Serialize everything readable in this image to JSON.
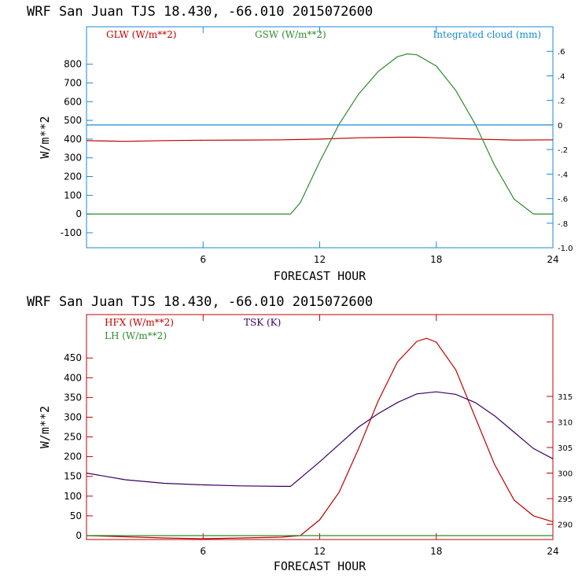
{
  "chart_data": [
    {
      "type": "line",
      "title": "WRF  San Juan TJS  18.430, -66.010  2015072600",
      "xlabel": "FORECAST HOUR",
      "ylabel": "W/m**2",
      "xlim": [
        0,
        24
      ],
      "ylim": [
        -180,
        1000
      ],
      "xticks": [
        "6",
        "12",
        "18",
        "24"
      ],
      "yticks": [
        "-100",
        "0",
        "100",
        "200",
        "300",
        "400",
        "500",
        "600",
        "700",
        "800"
      ],
      "y2lim": [
        -1.0,
        0.8
      ],
      "y2ticks": [
        ".6",
        ".4",
        ".2",
        "0",
        "-.2",
        "-.4",
        "-.6",
        "-.8",
        "-1.0"
      ],
      "axes_color": "#1a8ad4",
      "series": [
        {
          "name": "GLW (W/m**2)",
          "color": "#c00000",
          "axis": "left",
          "x": [
            0,
            2,
            4,
            6,
            8,
            10,
            12,
            14,
            16,
            17,
            18,
            20,
            22,
            24
          ],
          "y": [
            392,
            388,
            392,
            394,
            395,
            396,
            400,
            407,
            410,
            410,
            407,
            400,
            395,
            396
          ]
        },
        {
          "name": "GSW (W/m**2)",
          "color": "#2e8b2e",
          "axis": "left",
          "x": [
            0,
            10.5,
            11,
            12,
            13,
            14,
            15,
            16,
            16.5,
            17,
            18,
            19,
            20,
            21,
            22,
            23,
            24
          ],
          "y": [
            0,
            0,
            60,
            280,
            480,
            640,
            760,
            840,
            855,
            850,
            790,
            660,
            480,
            260,
            80,
            0,
            0
          ]
        },
        {
          "name": "Integrated cloud (mm)",
          "color": "#1a8ad4",
          "axis": "right",
          "x": [
            0,
            24
          ],
          "y": [
            0,
            0
          ]
        }
      ]
    },
    {
      "type": "line",
      "title": "WRF  San Juan TJS  18.430, -66.010  2015072600",
      "xlabel": "FORECAST HOUR",
      "ylabel": "W/m**2",
      "xlim": [
        0,
        24
      ],
      "ylim": [
        -10,
        560
      ],
      "xticks": [
        "6",
        "12",
        "18",
        "24"
      ],
      "yticks": [
        "0",
        "50",
        "100",
        "150",
        "200",
        "250",
        "300",
        "350",
        "400",
        "450"
      ],
      "y2lim": [
        287,
        331
      ],
      "y2ticks": [
        "290",
        "295",
        "300",
        "305",
        "310",
        "315"
      ],
      "axes_color": "#c00000",
      "series": [
        {
          "name": "HFX (W/m**2)",
          "color": "#c00000",
          "axis": "left",
          "x": [
            0,
            2,
            4,
            6,
            8,
            10,
            11,
            12,
            13,
            14,
            15,
            16,
            17,
            17.5,
            18,
            19,
            20,
            21,
            22,
            23,
            24
          ],
          "y": [
            0,
            -3,
            -6,
            -8,
            -6,
            -4,
            0,
            40,
            110,
            220,
            340,
            440,
            492,
            500,
            490,
            420,
            300,
            180,
            90,
            50,
            35
          ]
        },
        {
          "name": "LH  (W/m**2)",
          "color": "#2e8b2e",
          "axis": "left",
          "x": [
            0,
            24
          ],
          "y": [
            0,
            0
          ]
        },
        {
          "name": "TSK (K)",
          "color": "#3a0060",
          "axis": "right",
          "x": [
            0,
            2,
            4,
            6,
            8,
            10,
            10.5,
            12,
            13,
            14,
            15,
            16,
            17,
            18,
            19,
            20,
            21,
            22,
            23,
            24
          ],
          "y": [
            300.0,
            298.7,
            298.0,
            297.7,
            297.5,
            297.4,
            297.4,
            302.2,
            305.6,
            309.0,
            311.6,
            313.8,
            315.5,
            315.9,
            315.4,
            313.8,
            311.2,
            308.0,
            304.8,
            302.8
          ]
        }
      ]
    }
  ]
}
